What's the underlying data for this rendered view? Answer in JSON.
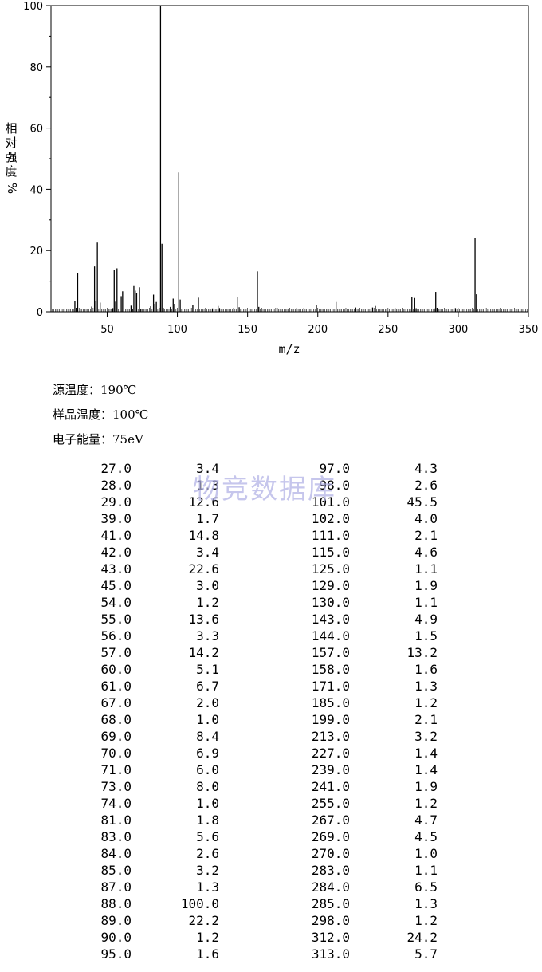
{
  "chart_data": {
    "type": "bar",
    "xlabel": "m/z",
    "ylabel": "相对强度 %",
    "xlim": [
      10,
      350
    ],
    "ylim": [
      0,
      100
    ],
    "x_ticks": [
      "50",
      "100",
      "150",
      "200",
      "250",
      "300",
      "350"
    ],
    "y_ticks": [
      "0",
      "20",
      "40",
      "60",
      "80",
      "100"
    ],
    "peaks": [
      {
        "mz": 27.0,
        "intensity": 3.4
      },
      {
        "mz": 28.0,
        "intensity": 1.3
      },
      {
        "mz": 29.0,
        "intensity": 12.6
      },
      {
        "mz": 39.0,
        "intensity": 1.7
      },
      {
        "mz": 41.0,
        "intensity": 14.8
      },
      {
        "mz": 42.0,
        "intensity": 3.4
      },
      {
        "mz": 43.0,
        "intensity": 22.6
      },
      {
        "mz": 45.0,
        "intensity": 3.0
      },
      {
        "mz": 54.0,
        "intensity": 1.2
      },
      {
        "mz": 55.0,
        "intensity": 13.6
      },
      {
        "mz": 56.0,
        "intensity": 3.3
      },
      {
        "mz": 57.0,
        "intensity": 14.2
      },
      {
        "mz": 60.0,
        "intensity": 5.1
      },
      {
        "mz": 61.0,
        "intensity": 6.7
      },
      {
        "mz": 67.0,
        "intensity": 2.0
      },
      {
        "mz": 68.0,
        "intensity": 1.0
      },
      {
        "mz": 69.0,
        "intensity": 8.4
      },
      {
        "mz": 70.0,
        "intensity": 6.9
      },
      {
        "mz": 71.0,
        "intensity": 6.0
      },
      {
        "mz": 73.0,
        "intensity": 8.0
      },
      {
        "mz": 74.0,
        "intensity": 1.0
      },
      {
        "mz": 81.0,
        "intensity": 1.8
      },
      {
        "mz": 83.0,
        "intensity": 5.6
      },
      {
        "mz": 84.0,
        "intensity": 2.6
      },
      {
        "mz": 85.0,
        "intensity": 3.2
      },
      {
        "mz": 87.0,
        "intensity": 1.3
      },
      {
        "mz": 88.0,
        "intensity": 100.0
      },
      {
        "mz": 89.0,
        "intensity": 22.2
      },
      {
        "mz": 90.0,
        "intensity": 1.2
      },
      {
        "mz": 95.0,
        "intensity": 1.6
      },
      {
        "mz": 97.0,
        "intensity": 4.3
      },
      {
        "mz": 98.0,
        "intensity": 2.6
      },
      {
        "mz": 101.0,
        "intensity": 45.5
      },
      {
        "mz": 102.0,
        "intensity": 4.0
      },
      {
        "mz": 111.0,
        "intensity": 2.1
      },
      {
        "mz": 115.0,
        "intensity": 4.6
      },
      {
        "mz": 125.0,
        "intensity": 1.1
      },
      {
        "mz": 129.0,
        "intensity": 1.9
      },
      {
        "mz": 130.0,
        "intensity": 1.1
      },
      {
        "mz": 143.0,
        "intensity": 4.9
      },
      {
        "mz": 144.0,
        "intensity": 1.5
      },
      {
        "mz": 157.0,
        "intensity": 13.2
      },
      {
        "mz": 158.0,
        "intensity": 1.6
      },
      {
        "mz": 171.0,
        "intensity": 1.3
      },
      {
        "mz": 185.0,
        "intensity": 1.2
      },
      {
        "mz": 199.0,
        "intensity": 2.1
      },
      {
        "mz": 213.0,
        "intensity": 3.2
      },
      {
        "mz": 227.0,
        "intensity": 1.4
      },
      {
        "mz": 239.0,
        "intensity": 1.4
      },
      {
        "mz": 241.0,
        "intensity": 1.9
      },
      {
        "mz": 255.0,
        "intensity": 1.2
      },
      {
        "mz": 267.0,
        "intensity": 4.7
      },
      {
        "mz": 269.0,
        "intensity": 4.5
      },
      {
        "mz": 270.0,
        "intensity": 1.0
      },
      {
        "mz": 283.0,
        "intensity": 1.1
      },
      {
        "mz": 284.0,
        "intensity": 6.5
      },
      {
        "mz": 285.0,
        "intensity": 1.3
      },
      {
        "mz": 298.0,
        "intensity": 1.2
      },
      {
        "mz": 312.0,
        "intensity": 24.2
      },
      {
        "mz": 313.0,
        "intensity": 5.7
      }
    ]
  },
  "conditions": {
    "source_temp": "源温度：190℃",
    "sample_temp": "样品温度：100℃",
    "electron_energy": "电子能量：75eV"
  },
  "watermark": "物竞数据库",
  "peak_table": {
    "left": [
      [
        "27.0",
        "3.4"
      ],
      [
        "28.0",
        "1.3"
      ],
      [
        "29.0",
        "12.6"
      ],
      [
        "39.0",
        "1.7"
      ],
      [
        "41.0",
        "14.8"
      ],
      [
        "42.0",
        "3.4"
      ],
      [
        "43.0",
        "22.6"
      ],
      [
        "45.0",
        "3.0"
      ],
      [
        "54.0",
        "1.2"
      ],
      [
        "55.0",
        "13.6"
      ],
      [
        "56.0",
        "3.3"
      ],
      [
        "57.0",
        "14.2"
      ],
      [
        "60.0",
        "5.1"
      ],
      [
        "61.0",
        "6.7"
      ],
      [
        "67.0",
        "2.0"
      ],
      [
        "68.0",
        "1.0"
      ],
      [
        "69.0",
        "8.4"
      ],
      [
        "70.0",
        "6.9"
      ],
      [
        "71.0",
        "6.0"
      ],
      [
        "73.0",
        "8.0"
      ],
      [
        "74.0",
        "1.0"
      ],
      [
        "81.0",
        "1.8"
      ],
      [
        "83.0",
        "5.6"
      ],
      [
        "84.0",
        "2.6"
      ],
      [
        "85.0",
        "3.2"
      ],
      [
        "87.0",
        "1.3"
      ],
      [
        "88.0",
        "100.0"
      ],
      [
        "89.0",
        "22.2"
      ],
      [
        "90.0",
        "1.2"
      ],
      [
        "95.0",
        "1.6"
      ]
    ],
    "right": [
      [
        "97.0",
        "4.3"
      ],
      [
        "98.0",
        "2.6"
      ],
      [
        "101.0",
        "45.5"
      ],
      [
        "102.0",
        "4.0"
      ],
      [
        "111.0",
        "2.1"
      ],
      [
        "115.0",
        "4.6"
      ],
      [
        "125.0",
        "1.1"
      ],
      [
        "129.0",
        "1.9"
      ],
      [
        "130.0",
        "1.1"
      ],
      [
        "143.0",
        "4.9"
      ],
      [
        "144.0",
        "1.5"
      ],
      [
        "157.0",
        "13.2"
      ],
      [
        "158.0",
        "1.6"
      ],
      [
        "171.0",
        "1.3"
      ],
      [
        "185.0",
        "1.2"
      ],
      [
        "199.0",
        "2.1"
      ],
      [
        "213.0",
        "3.2"
      ],
      [
        "227.0",
        "1.4"
      ],
      [
        "239.0",
        "1.4"
      ],
      [
        "241.0",
        "1.9"
      ],
      [
        "255.0",
        "1.2"
      ],
      [
        "267.0",
        "4.7"
      ],
      [
        "269.0",
        "4.5"
      ],
      [
        "270.0",
        "1.0"
      ],
      [
        "283.0",
        "1.1"
      ],
      [
        "284.0",
        "6.5"
      ],
      [
        "285.0",
        "1.3"
      ],
      [
        "298.0",
        "1.2"
      ],
      [
        "312.0",
        "24.2"
      ],
      [
        "313.0",
        "5.7"
      ]
    ]
  }
}
